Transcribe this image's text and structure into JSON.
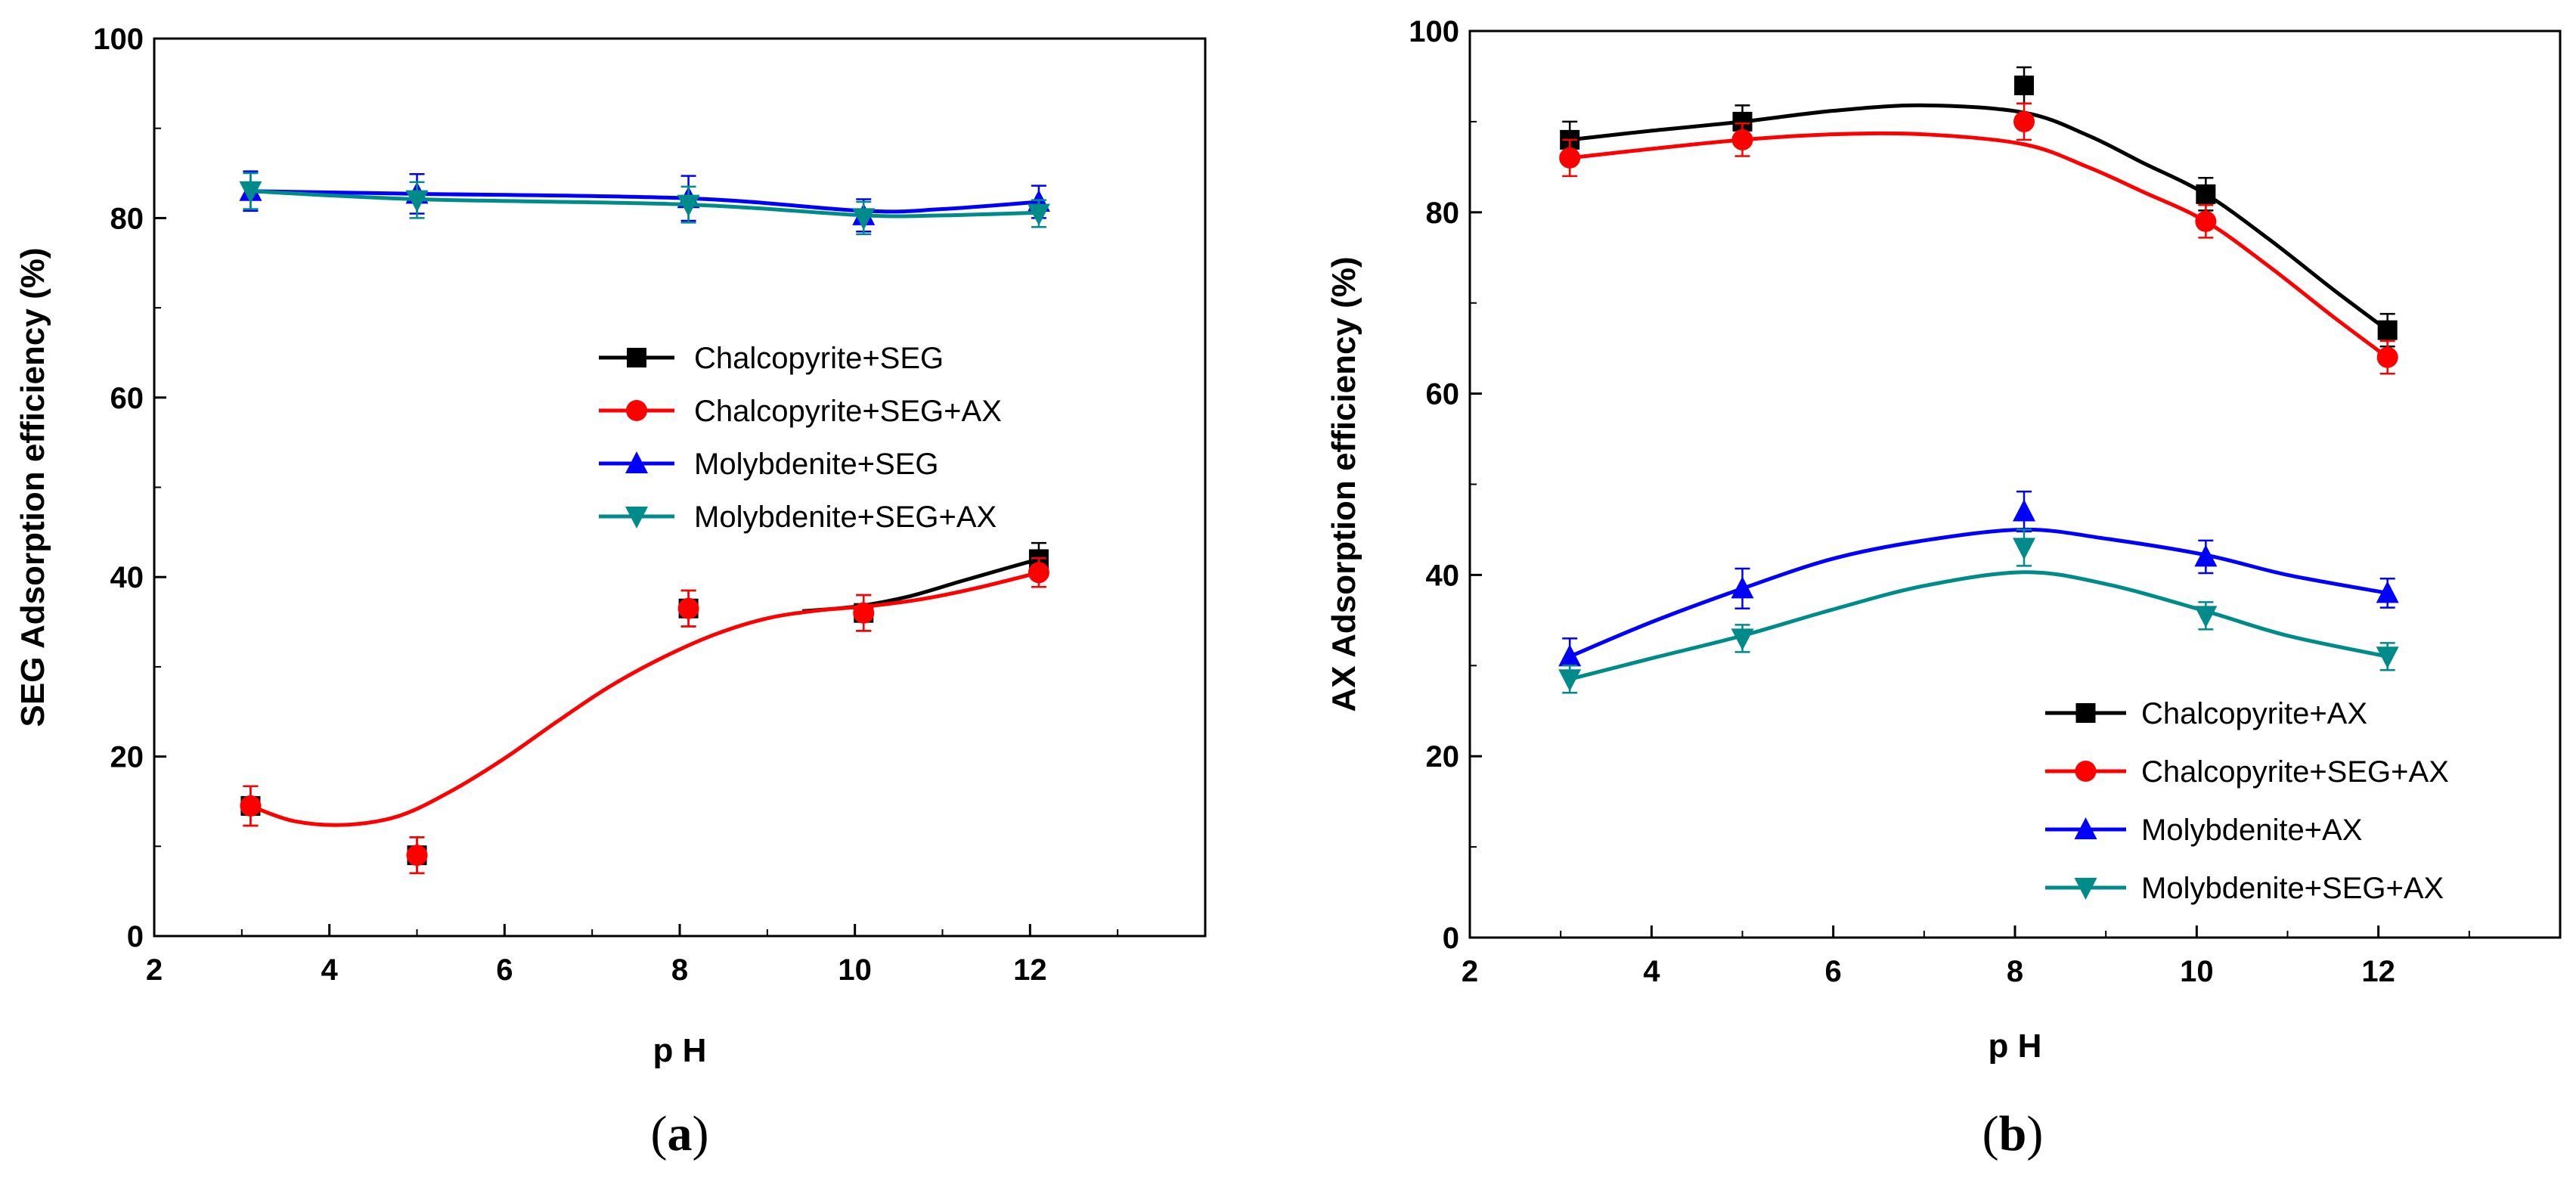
{
  "chart_data": [
    {
      "type": "line",
      "panel_label": "a",
      "xlabel": "p H",
      "ylabel": "SEG Adsorption efficiency (%)",
      "xlim": [
        2,
        14
      ],
      "ylim": [
        0,
        100
      ],
      "xticks": [
        2,
        4,
        6,
        8,
        10,
        12
      ],
      "yticks": [
        0,
        20,
        40,
        60,
        80,
        100
      ],
      "legend_position": "center-right",
      "series": [
        {
          "name": "Chalcopyrite+SEG",
          "color": "#000000",
          "marker": "square",
          "x": [
            3.1,
            5.0,
            8.1,
            10.1,
            12.1
          ],
          "y": [
            14.5,
            9.0,
            36.5,
            36.0,
            42.0
          ],
          "err": [
            2.2,
            2.0,
            2.0,
            2.0,
            1.8
          ],
          "fit_x": [
            9.4,
            10.0,
            10.6,
            11.2,
            11.7,
            12.1
          ],
          "fit_y": [
            36.2,
            36.7,
            37.8,
            39.5,
            40.9,
            42.0
          ]
        },
        {
          "name": "Chalcopyrite+SEG+AX",
          "color": "#ff0000",
          "marker": "circle",
          "x": [
            3.1,
            5.0,
            8.1,
            10.1,
            12.1
          ],
          "y": [
            14.5,
            9.0,
            36.5,
            36.0,
            40.5
          ],
          "err": [
            2.2,
            2.0,
            2.0,
            2.0,
            1.6
          ],
          "fit_x": [
            3.1,
            3.6,
            4.2,
            4.8,
            5.4,
            6.0,
            6.6,
            7.2,
            7.8,
            8.4,
            9.0,
            9.6,
            10.2,
            10.8,
            11.4,
            12.1
          ],
          "fit_y": [
            14.5,
            12.8,
            12.4,
            13.4,
            16.2,
            19.8,
            23.9,
            27.8,
            31.0,
            33.6,
            35.4,
            36.3,
            36.8,
            37.6,
            38.8,
            40.5
          ]
        },
        {
          "name": "Molybdenite+SEG",
          "color": "#0000ff",
          "marker": "triangle-up",
          "x": [
            3.1,
            5.0,
            8.1,
            10.1,
            12.1
          ],
          "y": [
            83.0,
            82.7,
            82.2,
            80.3,
            81.8
          ],
          "err": [
            2.2,
            2.2,
            2.5,
            1.8,
            1.8
          ],
          "fit_x": [
            3.1,
            5.0,
            8.1,
            10.1,
            11.0,
            12.1
          ],
          "fit_y": [
            83.0,
            82.7,
            82.2,
            80.8,
            81.0,
            81.8
          ]
        },
        {
          "name": "Molybdenite+SEG+AX",
          "color": "#008b8b",
          "marker": "triangle-down",
          "x": [
            3.1,
            5.0,
            8.1,
            10.1,
            12.1
          ],
          "y": [
            83.0,
            82.0,
            81.5,
            80.0,
            80.5
          ],
          "err": [
            2.0,
            2.0,
            2.0,
            1.8,
            1.5
          ],
          "fit_x": [
            3.1,
            5.0,
            8.1,
            10.1,
            11.0,
            12.1
          ],
          "fit_y": [
            83.0,
            82.1,
            81.5,
            80.3,
            80.3,
            80.6
          ]
        }
      ]
    },
    {
      "type": "line",
      "panel_label": "b",
      "xlabel": "p H",
      "ylabel": "AX Adsorption efficiency (%)",
      "xlim": [
        2,
        14
      ],
      "ylim": [
        0,
        100
      ],
      "xticks": [
        2,
        4,
        6,
        8,
        10,
        12
      ],
      "yticks": [
        0,
        20,
        40,
        60,
        80,
        100
      ],
      "legend_position": "bottom-right",
      "series": [
        {
          "name": "Chalcopyrite+AX",
          "color": "#000000",
          "marker": "square",
          "x": [
            3.1,
            5.0,
            8.1,
            10.1,
            12.1
          ],
          "y": [
            88.0,
            90.0,
            94.0,
            82.0,
            67.0
          ],
          "err": [
            2.0,
            1.8,
            2.0,
            1.8,
            1.8
          ],
          "fit_x": [
            3.1,
            4.0,
            5.0,
            6.0,
            7.0,
            8.1,
            8.8,
            9.4,
            10.1,
            10.8,
            11.5,
            12.1
          ],
          "fit_y": [
            88.0,
            89.0,
            90.0,
            91.2,
            91.8,
            91.0,
            88.5,
            85.5,
            82.0,
            77.0,
            71.5,
            67.0
          ]
        },
        {
          "name": "Chalcopyrite+SEG+AX",
          "color": "#ff0000",
          "marker": "circle",
          "x": [
            3.1,
            5.0,
            8.1,
            10.1,
            12.1
          ],
          "y": [
            86.0,
            88.0,
            90.0,
            79.0,
            64.0
          ],
          "err": [
            2.0,
            1.8,
            2.0,
            1.8,
            1.8
          ],
          "fit_x": [
            3.1,
            4.0,
            5.0,
            6.0,
            7.0,
            8.1,
            8.8,
            9.4,
            10.1,
            10.8,
            11.5,
            12.1
          ],
          "fit_y": [
            86.0,
            87.0,
            88.0,
            88.6,
            88.6,
            87.5,
            85.0,
            82.3,
            79.0,
            74.0,
            68.5,
            64.0
          ]
        },
        {
          "name": "Molybdenite+AX",
          "color": "#0000ff",
          "marker": "triangle-up",
          "x": [
            3.1,
            5.0,
            8.1,
            10.1,
            12.1
          ],
          "y": [
            31.0,
            38.5,
            47.0,
            42.0,
            38.0
          ],
          "err": [
            2.0,
            2.2,
            2.2,
            1.8,
            1.6
          ],
          "fit_x": [
            3.1,
            4.0,
            5.0,
            6.0,
            7.0,
            8.1,
            9.0,
            10.1,
            11.0,
            12.1
          ],
          "fit_y": [
            31.0,
            34.8,
            38.5,
            41.8,
            43.8,
            45.0,
            44.0,
            42.2,
            40.0,
            38.0
          ]
        },
        {
          "name": "Molybdenite+SEG+AX",
          "color": "#008b8b",
          "marker": "triangle-down",
          "x": [
            3.1,
            5.0,
            8.1,
            10.1,
            12.1
          ],
          "y": [
            28.5,
            33.0,
            43.0,
            35.5,
            31.0
          ],
          "err": [
            1.5,
            1.5,
            2.0,
            1.5,
            1.5
          ],
          "fit_x": [
            3.1,
            4.0,
            5.0,
            6.0,
            7.0,
            8.1,
            9.0,
            10.1,
            11.0,
            12.1
          ],
          "fit_y": [
            28.5,
            30.8,
            33.3,
            36.2,
            38.8,
            40.3,
            39.0,
            36.0,
            33.3,
            31.0
          ]
        }
      ]
    }
  ]
}
